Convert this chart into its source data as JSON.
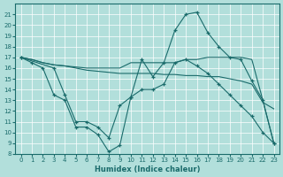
{
  "xlabel": "Humidex (Indice chaleur)",
  "xlim": [
    -0.5,
    23.5
  ],
  "ylim": [
    8,
    22
  ],
  "yticks": [
    8,
    9,
    10,
    11,
    12,
    13,
    14,
    15,
    16,
    17,
    18,
    19,
    20,
    21
  ],
  "xticks": [
    0,
    1,
    2,
    3,
    4,
    5,
    6,
    7,
    8,
    9,
    10,
    11,
    12,
    13,
    14,
    15,
    16,
    17,
    18,
    19,
    20,
    21,
    22,
    23
  ],
  "bg_color": "#b2dfdb",
  "line_color": "#1a6b6b",
  "grid_color": "#ffffff",
  "line0_x": [
    0,
    1,
    2,
    3,
    4,
    5,
    6,
    7,
    8,
    9,
    10,
    11,
    12,
    13,
    14,
    15,
    16,
    17,
    18,
    19,
    20,
    21,
    22,
    23
  ],
  "line0_y": [
    17,
    16.5,
    16,
    13.5,
    13,
    10.5,
    10.5,
    9.8,
    8.2,
    8.8,
    13.3,
    16.8,
    15.2,
    16.5,
    19.5,
    21,
    21.2,
    19.3,
    18,
    17,
    16.8,
    14.8,
    13,
    9
  ],
  "line1_x": [
    0,
    1,
    2,
    3,
    4,
    5,
    6,
    7,
    8,
    9,
    10,
    11,
    12,
    13,
    14,
    15,
    16,
    17,
    18,
    19,
    20,
    21,
    22,
    23
  ],
  "line1_y": [
    17,
    16.8,
    16.5,
    16.3,
    16.2,
    16.1,
    16.0,
    16.0,
    16.0,
    16.0,
    16.5,
    16.5,
    16.5,
    16.5,
    16.5,
    16.8,
    16.8,
    17.0,
    17.0,
    17.0,
    17.0,
    16.8,
    13.0,
    9.0
  ],
  "line2_x": [
    0,
    1,
    2,
    3,
    4,
    5,
    6,
    7,
    8,
    9,
    10,
    11,
    12,
    13,
    14,
    15,
    16,
    17,
    18,
    19,
    20,
    21,
    22,
    23
  ],
  "line2_y": [
    17,
    16.8,
    16.5,
    16.3,
    16.2,
    16.0,
    15.8,
    15.7,
    15.6,
    15.5,
    15.5,
    15.5,
    15.5,
    15.4,
    15.4,
    15.3,
    15.3,
    15.2,
    15.2,
    15.0,
    14.8,
    14.5,
    12.8,
    12.2
  ],
  "line3_x": [
    0,
    3,
    4,
    5,
    6,
    7,
    8,
    9,
    10,
    11,
    12,
    13,
    14,
    15,
    16,
    17,
    18,
    19,
    20,
    21,
    22,
    23
  ],
  "line3_y": [
    17,
    16,
    13.5,
    11,
    11,
    10.5,
    9.5,
    12.5,
    13.3,
    14,
    14,
    14.5,
    16.5,
    16.8,
    16.2,
    15.5,
    14.5,
    13.5,
    12.5,
    11.5,
    10,
    9
  ]
}
